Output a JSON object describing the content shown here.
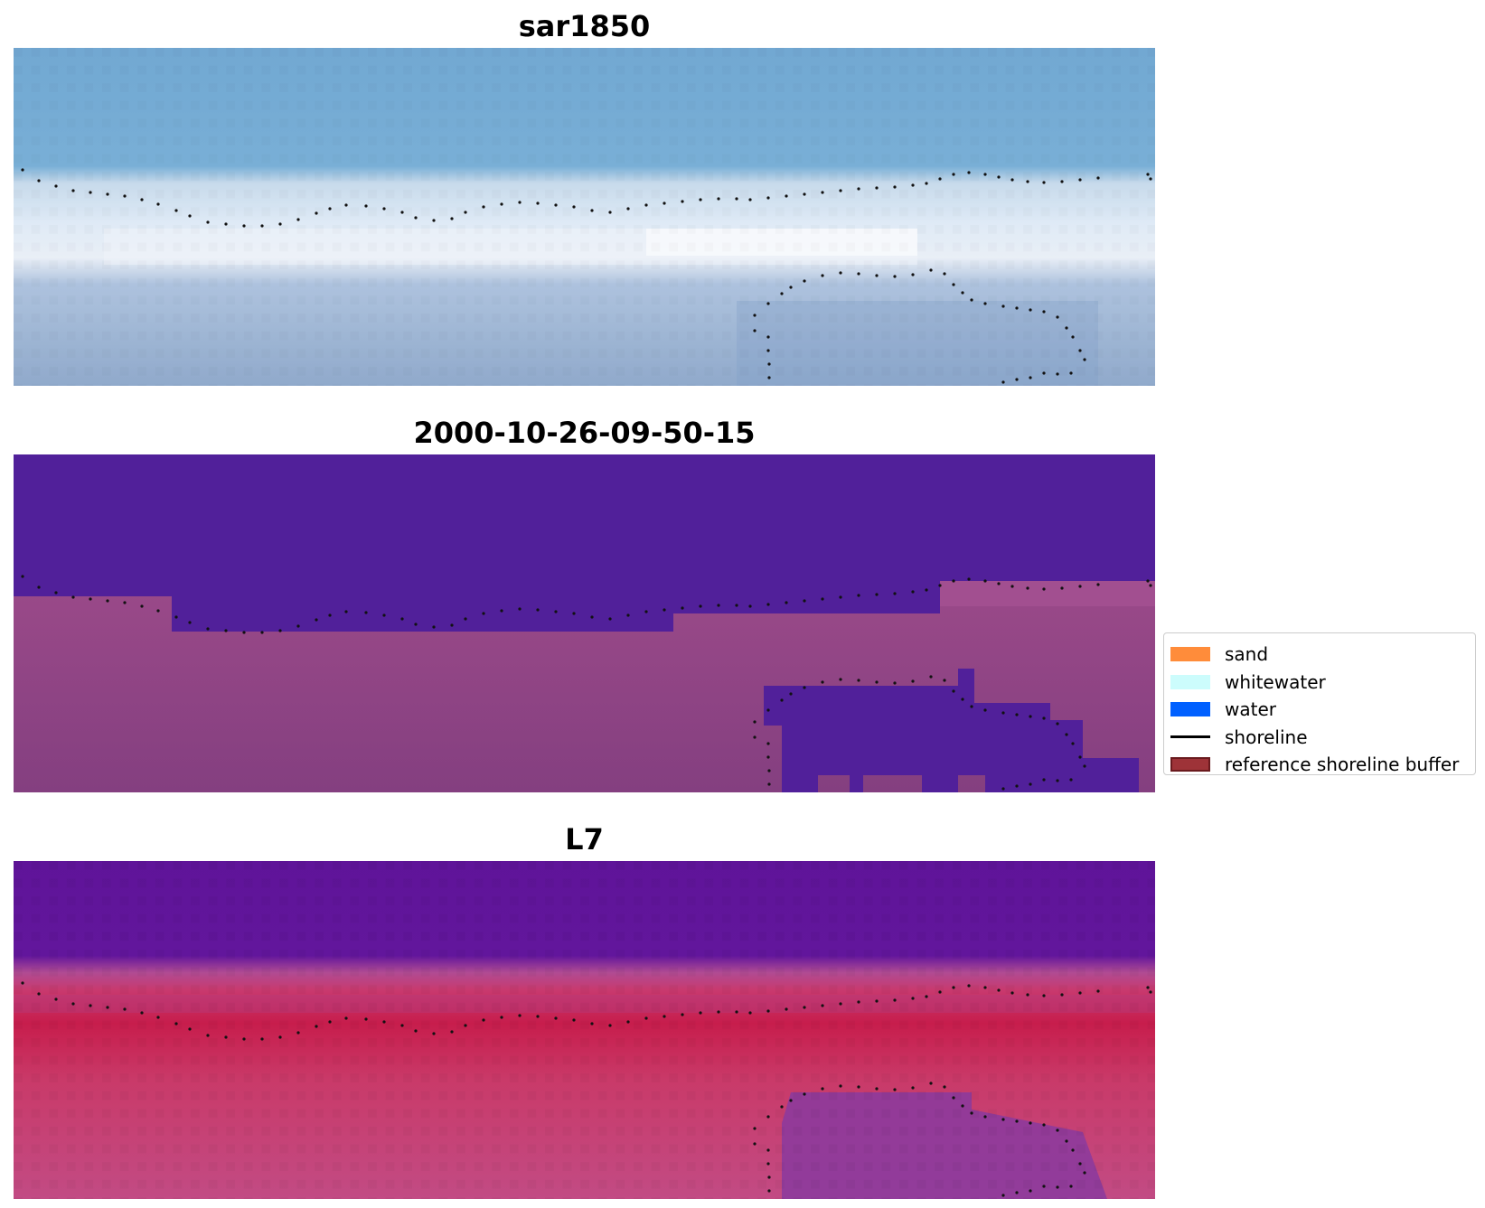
{
  "panels": [
    {
      "title": "sar1850"
    },
    {
      "title": "2000-10-26-09-50-15"
    },
    {
      "title": "L7"
    }
  ],
  "legend": {
    "placement": "right-middle",
    "items": [
      {
        "label": "sand",
        "color": "#ff8c3a",
        "kind": "patch"
      },
      {
        "label": "whitewater",
        "color": "#ccfcfc",
        "kind": "patch"
      },
      {
        "label": "water",
        "color": "#0060ff",
        "kind": "patch"
      },
      {
        "label": "shoreline",
        "color": "#000000",
        "kind": "line"
      },
      {
        "label": "reference shoreline buffer",
        "color": "#9e3338",
        "kind": "patch"
      }
    ]
  },
  "colors": {
    "rgb_sky": "#6fa6d2",
    "rgb_surf": "#dce8f4",
    "rgb_beach": "#8ca6cc",
    "class_water": "#51209a",
    "class_land": "#9c4c8c",
    "index_dark": "#5e1298",
    "index_red": "#c41d4f",
    "index_mid": "#c24a84"
  }
}
